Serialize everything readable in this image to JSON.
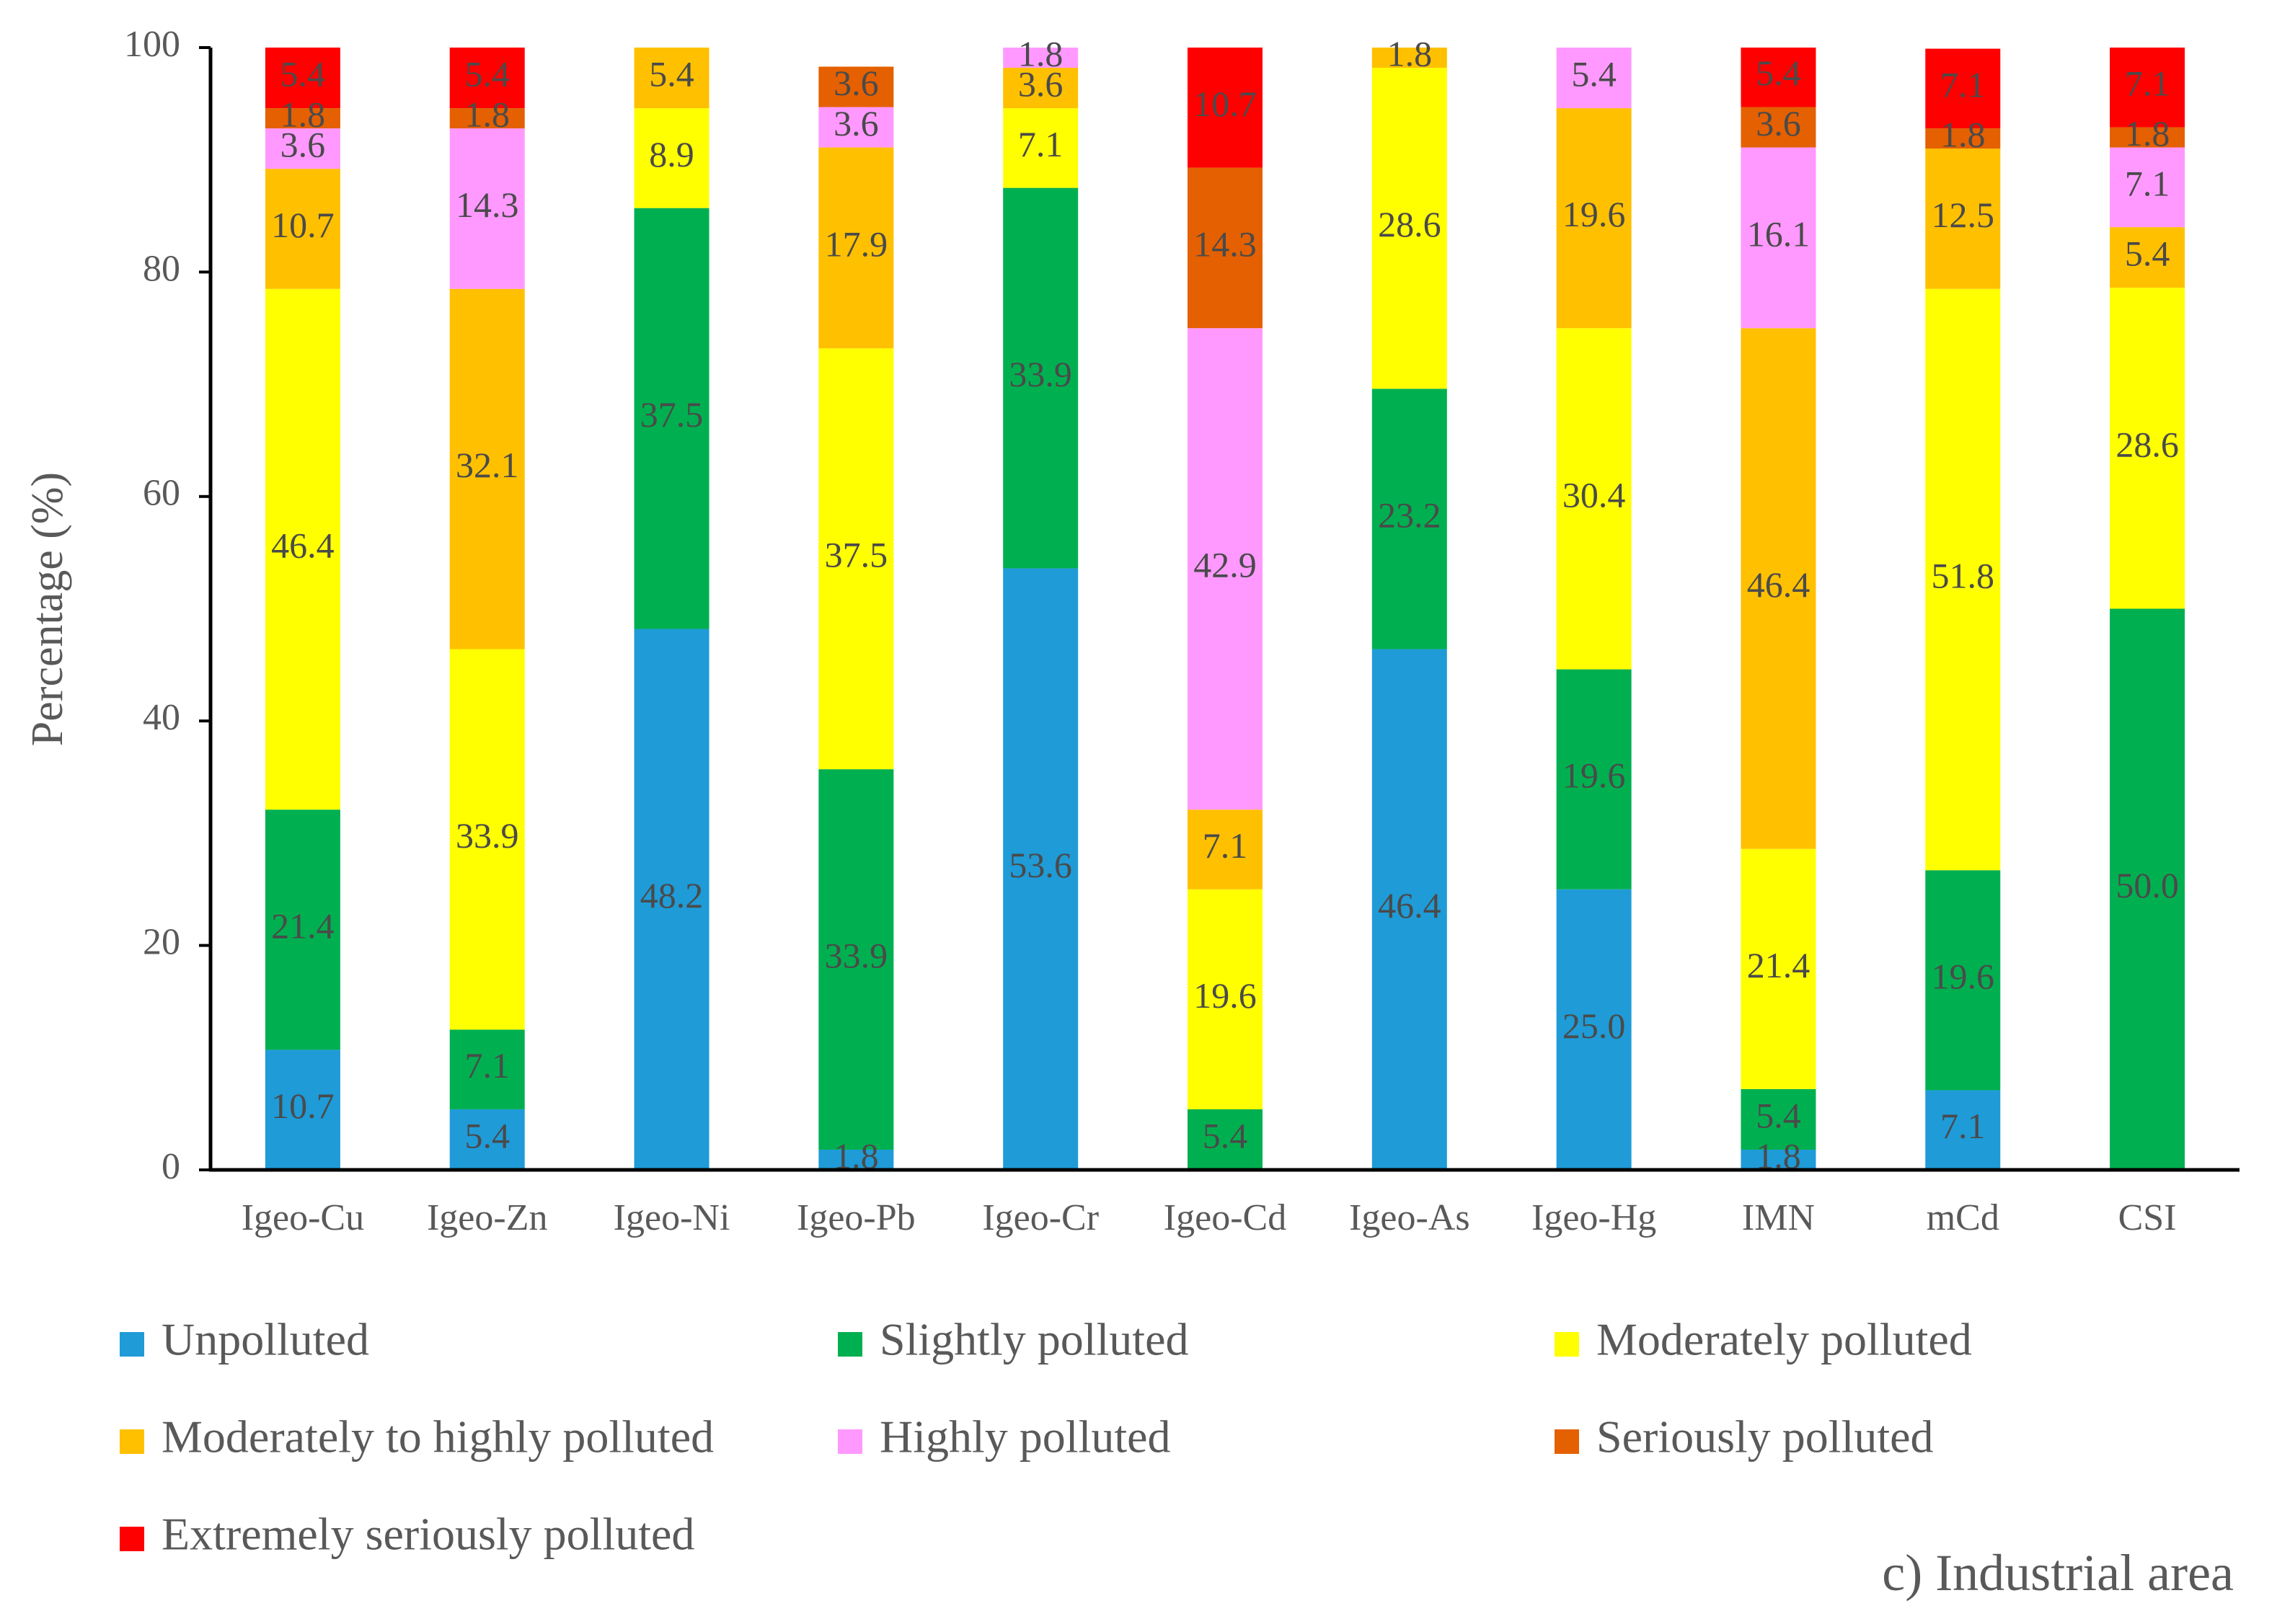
{
  "chart_data": {
    "type": "bar",
    "stacked": true,
    "caption": "c) Industrial area",
    "ylabel": "Percentage (%)",
    "xlabel": "",
    "ylim": [
      0,
      100
    ],
    "yticks": [
      0,
      20,
      40,
      60,
      80,
      100
    ],
    "legend_position": "bottom",
    "categories": [
      "Igeo-Cu",
      "Igeo-Zn",
      "Igeo-Ni",
      "Igeo-Pb",
      "Igeo-Cr",
      "Igeo-Cd",
      "Igeo-As",
      "Igeo-Hg",
      "IMN",
      "mCd",
      "CSI"
    ],
    "series": [
      {
        "name": "Unpolluted",
        "color": "#1f9bd7",
        "values": [
          10.7,
          5.4,
          48.2,
          1.8,
          53.6,
          0,
          46.4,
          25.0,
          1.8,
          7.1,
          0
        ],
        "labels": [
          "10.7",
          "5.4",
          "48.2",
          "1.8",
          "53.6",
          "",
          "46.4",
          "25.0",
          "1.8",
          "7.1",
          ""
        ]
      },
      {
        "name": "Slightly polluted",
        "color": "#00b050",
        "values": [
          21.4,
          7.1,
          37.5,
          33.9,
          33.9,
          5.4,
          23.2,
          19.6,
          5.4,
          19.6,
          50.0
        ],
        "labels": [
          "21.4",
          "7.1",
          "37.5",
          "33.9",
          "33.9",
          "5.4",
          "23.2",
          "19.6",
          "5.4",
          "19.6",
          "50.0"
        ]
      },
      {
        "name": "Moderately polluted",
        "color": "#ffff00",
        "values": [
          46.4,
          33.9,
          8.9,
          37.5,
          7.1,
          19.6,
          28.6,
          30.4,
          21.4,
          51.8,
          28.6
        ],
        "labels": [
          "46.4",
          "33.9",
          "8.9",
          "37.5",
          "7.1",
          "19.6",
          "28.6",
          "30.4",
          "21.4",
          "51.8",
          "28.6"
        ]
      },
      {
        "name": "Moderately to highly polluted",
        "color": "#ffc000",
        "values": [
          10.7,
          32.1,
          5.4,
          17.9,
          3.6,
          7.1,
          1.8,
          19.6,
          46.4,
          12.5,
          5.4
        ],
        "labels": [
          "10.7",
          "32.1",
          "5.4",
          "17.9",
          "3.6",
          "7.1",
          "1.8",
          "19.6",
          "46.4",
          "12.5",
          "5.4"
        ]
      },
      {
        "name": "Highly polluted",
        "color": "#ff99ff",
        "values": [
          3.6,
          14.3,
          0,
          3.6,
          1.8,
          42.9,
          0,
          5.4,
          16.1,
          0,
          7.1
        ],
        "labels": [
          "3.6",
          "14.3",
          "",
          "3.6",
          "1.8",
          "42.9",
          "",
          "5.4",
          "16.1",
          "",
          "7.1"
        ]
      },
      {
        "name": "Seriously polluted",
        "color": "#e46000",
        "values": [
          1.8,
          1.8,
          0,
          3.6,
          0,
          14.3,
          0,
          0,
          3.6,
          1.8,
          1.8
        ],
        "labels": [
          "1.8",
          "1.8",
          "",
          "3.6",
          "",
          "14.3",
          "",
          "",
          "3.6",
          "1.8",
          "1.8"
        ]
      },
      {
        "name": "Extremely seriously polluted",
        "color": "#ff0000",
        "values": [
          5.4,
          5.4,
          0,
          0,
          0,
          10.7,
          0,
          0,
          5.4,
          7.1,
          7.1
        ],
        "labels": [
          "5.4",
          "5.4",
          "",
          "",
          "",
          "10.7",
          "",
          "",
          "5.4",
          "7.1",
          "7.1"
        ]
      }
    ]
  }
}
